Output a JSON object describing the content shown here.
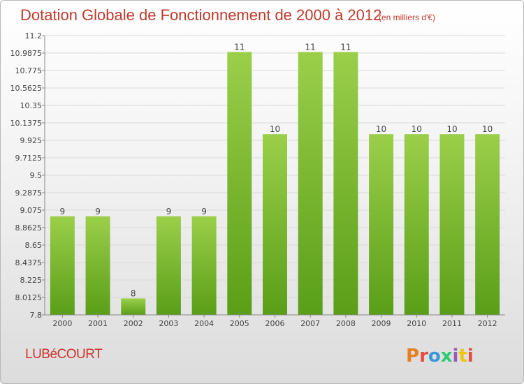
{
  "header": {
    "title": "Dotation Globale de Fonctionnement de 2000 à 2012",
    "unit": "(en milliers d'€)"
  },
  "footer": {
    "place": "LUBéCOURT",
    "logo_text": "Proxiti",
    "logo_colors": [
      "#e67e22",
      "#e74c3c",
      "#3498db",
      "#2ecc71",
      "#9b59b6",
      "#f1c40f",
      "#e74c3c"
    ]
  },
  "colors": {
    "bar_top": "#9bcf4a",
    "bar_bottom": "#5a9e18",
    "title": "#c0392b",
    "grid": "#d9d9d9"
  },
  "chart_data": {
    "type": "bar",
    "title": "Dotation Globale de Fonctionnement de 2000 à 2012",
    "subtitle": "(en milliers d'€)",
    "xlabel": "",
    "ylabel": "",
    "categories": [
      "2000",
      "2001",
      "2002",
      "2003",
      "2004",
      "2005",
      "2006",
      "2007",
      "2008",
      "2009",
      "2010",
      "2011",
      "2012"
    ],
    "values": [
      9,
      9,
      8,
      9,
      9,
      11,
      10,
      11,
      11,
      10,
      10,
      10,
      10
    ],
    "data_labels": [
      "9",
      "9",
      "8",
      "9",
      "9",
      "11",
      "10",
      "11",
      "11",
      "10",
      "10",
      "10",
      "10"
    ],
    "ylim": [
      7.8,
      11.2
    ],
    "yticks": [
      "7.8",
      "8.0125",
      "8.225",
      "8.4375",
      "8.65",
      "8.8625",
      "9.075",
      "9.2875",
      "9.5",
      "9.7125",
      "9.925",
      "10.1375",
      "10.35",
      "10.5625",
      "10.775",
      "10.9875",
      "11.2"
    ],
    "grid": true,
    "legend": "none"
  }
}
